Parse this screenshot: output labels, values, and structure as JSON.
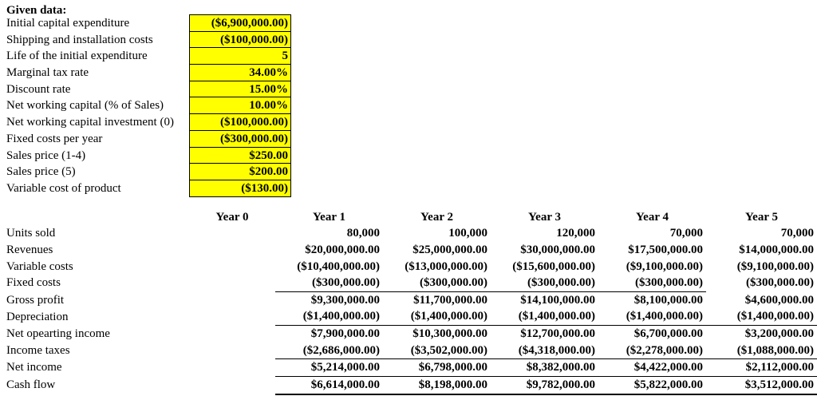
{
  "given_data": {
    "title": "Given data:",
    "highlight_color": "#FFFF00",
    "rows": [
      {
        "label": "Initial capital expenditure",
        "value": "($6,900,000.00)"
      },
      {
        "label": "Shipping and installation costs",
        "value": "($100,000.00)"
      },
      {
        "label": "Life of the initial expenditure",
        "value": "5"
      },
      {
        "label": "Marginal tax rate",
        "value": "34.00%"
      },
      {
        "label": "Discount rate",
        "value": "15.00%"
      },
      {
        "label": "Net working capital (% of Sales)",
        "value": "10.00%"
      },
      {
        "label": "Net working capital investment (0)",
        "value": "($100,000.00)"
      },
      {
        "label": "Fixed costs per year",
        "value": "($300,000.00)"
      },
      {
        "label": "Sales price (1-4)",
        "value": "$250.00"
      },
      {
        "label": "Sales price (5)",
        "value": "$200.00"
      },
      {
        "label": "Variable cost of product",
        "value": "($130.00)"
      }
    ]
  },
  "projection_table": {
    "columns": [
      "Year 0",
      "Year 1",
      "Year 2",
      "Year 3",
      "Year 4",
      "Year 5"
    ],
    "rows": [
      {
        "label": "Units sold",
        "values": [
          "",
          "80,000",
          "100,000",
          "120,000",
          "70,000",
          "70,000"
        ]
      },
      {
        "label": "Revenues",
        "values": [
          "",
          "$20,000,000.00",
          "$25,000,000.00",
          "$30,000,000.00",
          "$17,500,000.00",
          "$14,000,000.00"
        ]
      },
      {
        "label": "Variable costs",
        "values": [
          "",
          "($10,400,000.00)",
          "($13,000,000.00)",
          "($15,600,000.00)",
          "($9,100,000.00)",
          "($9,100,000.00)"
        ]
      },
      {
        "label": "Fixed costs",
        "values": [
          "",
          "($300,000.00)",
          "($300,000.00)",
          "($300,000.00)",
          "($300,000.00)",
          "($300,000.00)"
        ]
      },
      {
        "label": "Gross profit",
        "values": [
          "",
          "$9,300,000.00",
          "$11,700,000.00",
          "$14,100,000.00",
          "$8,100,000.00",
          "$4,600,000.00"
        ]
      },
      {
        "label": "Depreciation",
        "values": [
          "",
          "($1,400,000.00)",
          "($1,400,000.00)",
          "($1,400,000.00)",
          "($1,400,000.00)",
          "($1,400,000.00)"
        ]
      },
      {
        "label": "Net opearting income",
        "values": [
          "",
          "$7,900,000.00",
          "$10,300,000.00",
          "$12,700,000.00",
          "$6,700,000.00",
          "$3,200,000.00"
        ]
      },
      {
        "label": "Income taxes",
        "values": [
          "",
          "($2,686,000.00)",
          "($3,502,000.00)",
          "($4,318,000.00)",
          "($2,278,000.00)",
          "($1,088,000.00)"
        ]
      },
      {
        "label": "Net income",
        "values": [
          "",
          "$5,214,000.00",
          "$6,798,000.00",
          "$8,382,000.00",
          "$4,422,000.00",
          "$2,112,000.00"
        ]
      },
      {
        "label": "Cash flow",
        "values": [
          "",
          "$6,614,000.00",
          "$8,198,000.00",
          "$9,782,000.00",
          "$5,822,000.00",
          "$3,512,000.00"
        ]
      }
    ]
  }
}
